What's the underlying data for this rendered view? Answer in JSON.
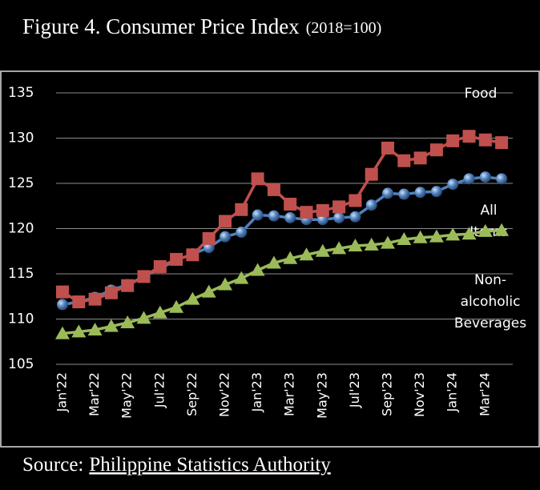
{
  "chart_data": {
    "type": "line",
    "title": "Figure 4. Consumer Price Index",
    "subtitle": "(2018=100)",
    "source_label": "Source:",
    "source_name": "Philippine Statistics Authority",
    "categories": [
      "Jan'22",
      null,
      "Mar'22",
      null,
      "May'22",
      null,
      "Jul'22",
      null,
      "Sep'22",
      null,
      "Nov'22",
      null,
      "Jan'23",
      null,
      "Mar'23",
      null,
      "May'23",
      null,
      "Jul'23",
      null,
      "Sep'23",
      null,
      "Nov'23",
      null,
      "Jan'24",
      null,
      "Mar'24",
      null
    ],
    "series": [
      {
        "name": "All Items",
        "color": "#4f81bd",
        "marker": "circle",
        "values": [
          111.6,
          111.9,
          112.4,
          113.2,
          113.8,
          114.7,
          115.6,
          116.5,
          117.2,
          117.9,
          119.1,
          119.6,
          121.5,
          121.4,
          121.2,
          121.0,
          121.0,
          121.2,
          121.3,
          122.6,
          123.9,
          123.8,
          124.0,
          124.1,
          124.9,
          125.5,
          125.7,
          125.5
        ]
      },
      {
        "name": "Food",
        "color": "#c0504d",
        "marker": "square",
        "values": [
          113.0,
          111.9,
          112.2,
          112.9,
          113.7,
          114.7,
          115.8,
          116.6,
          117.1,
          118.9,
          120.8,
          122.1,
          125.5,
          124.3,
          122.7,
          121.8,
          122.0,
          122.4,
          123.1,
          126.0,
          128.9,
          127.5,
          127.8,
          128.7,
          129.7,
          130.2,
          129.8,
          129.5
        ]
      },
      {
        "name": "Non-alcoholic Beverages",
        "color": "#9bbb59",
        "marker": "triangle",
        "values": [
          108.4,
          108.6,
          108.8,
          109.2,
          109.6,
          110.1,
          110.7,
          111.3,
          112.2,
          113.0,
          113.8,
          114.5,
          115.4,
          116.2,
          116.7,
          117.1,
          117.5,
          117.8,
          118.1,
          118.2,
          118.4,
          118.8,
          119.0,
          119.1,
          119.3,
          119.4,
          119.7,
          119.8
        ]
      }
    ],
    "ylim": [
      105,
      135
    ],
    "yticks": [
      105,
      110,
      115,
      120,
      125,
      130,
      135
    ],
    "grid": true
  }
}
